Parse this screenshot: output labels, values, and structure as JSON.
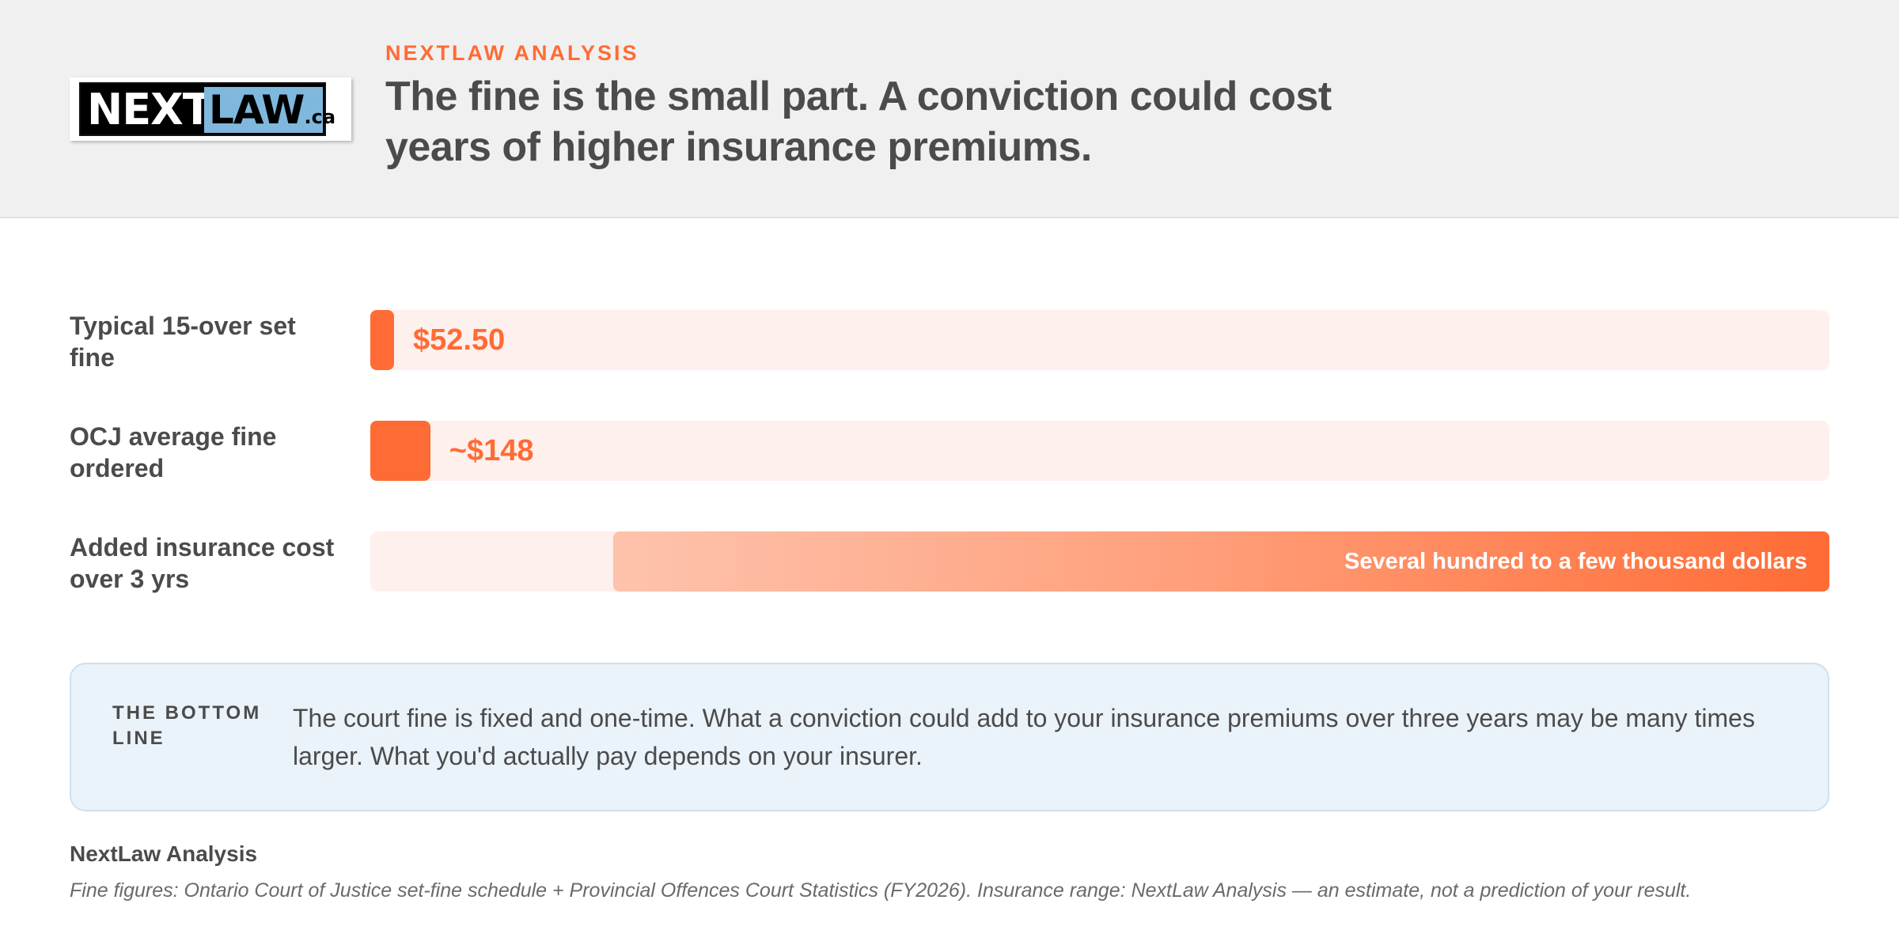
{
  "header": {
    "logo_next": "NEXT",
    "logo_law": "LAW",
    "logo_ca": ".ca",
    "kicker": "NEXTLAW ANALYSIS",
    "headline": "The fine is the small part. A conviction could cost years of higher insurance premiums."
  },
  "chart_data": {
    "type": "bar",
    "orientation": "horizontal",
    "title": "The fine is the small part. A conviction could cost years of higher insurance premiums.",
    "categories": [
      "Typical 15-over set fine",
      "OCJ average fine ordered",
      "Added insurance cost over 3 yrs"
    ],
    "values": [
      52.5,
      148,
      null
    ],
    "value_labels": [
      "$52.50",
      "~$148",
      "Several hundred to a few thousand dollars"
    ],
    "ranges": [
      null,
      null,
      [
        600,
        3600
      ]
    ],
    "xlim": [
      0,
      3600
    ],
    "grid": false,
    "legend": "none",
    "colors": {
      "fine_bar": "#ff6b35",
      "track": "#fef0ec",
      "range_start": "#fec3ad",
      "range_end": "#ff6b35"
    }
  },
  "bottom_line": {
    "label": "THE BOTTOM LINE",
    "text": "The court fine is fixed and one-time. What a conviction could add to your insurance premiums over three years may be many times larger. What you'd actually pay depends on your insurer."
  },
  "source": {
    "title": "NextLaw Analysis",
    "text": "Fine figures: Ontario Court of Justice set-fine schedule + Provincial Offences Court Statistics (FY2026). Insurance range: NextLaw Analysis — an estimate, not a prediction of your result."
  }
}
